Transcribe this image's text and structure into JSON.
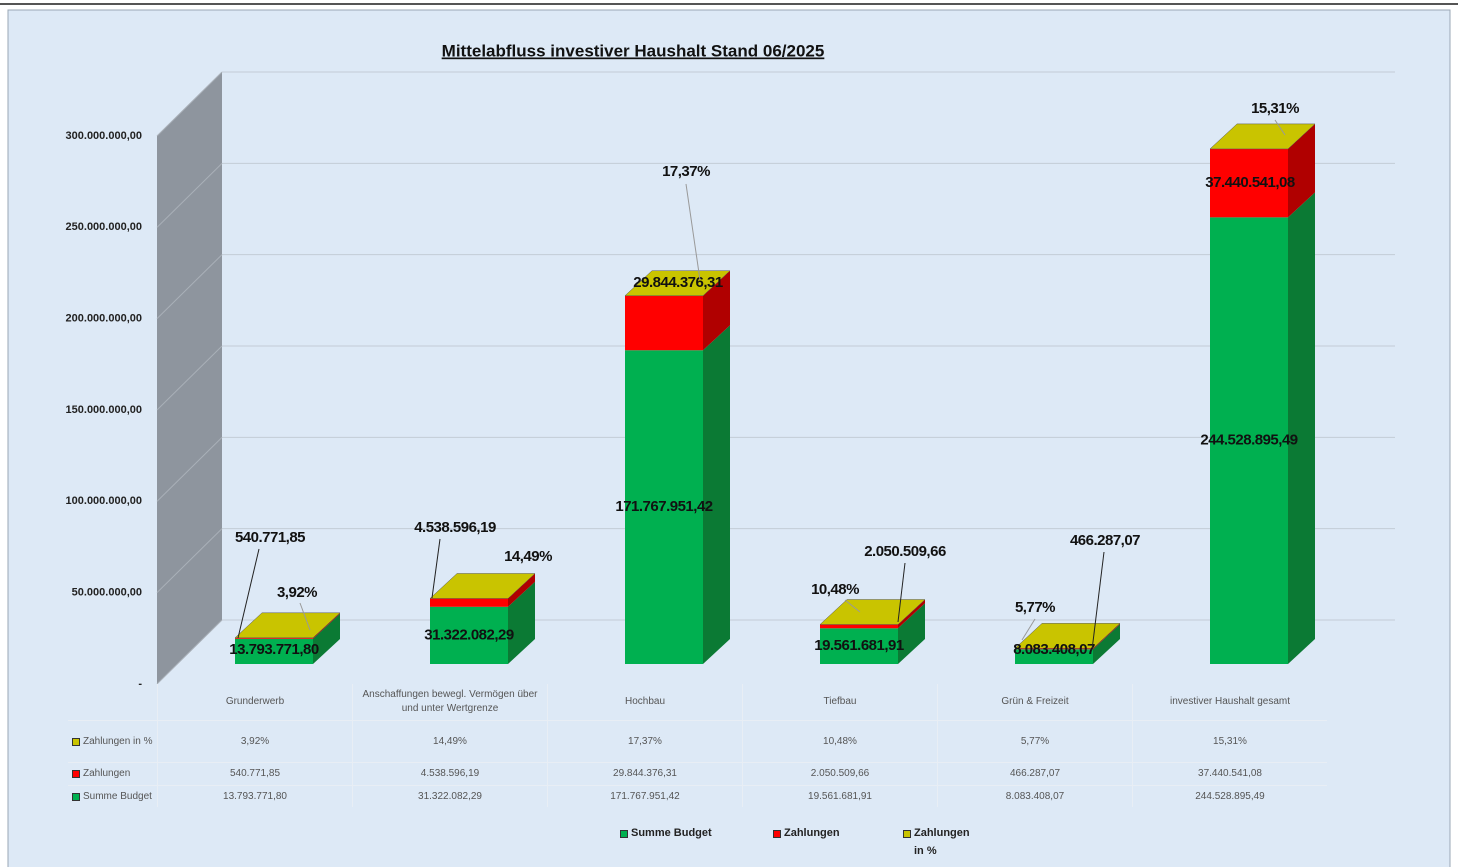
{
  "chart_data": {
    "type": "bar3d_stacked",
    "title": "Mittelabfluss investiver Haushalt Stand 06/2025",
    "categories": [
      "Grunderwerb",
      "Anschaffungen bewegl. Vermögen über und unter Wertgrenze",
      "Hochbau",
      "Tiefbau",
      "Grün & Freizeit",
      "investiver Haushalt gesamt"
    ],
    "series": [
      {
        "name": "Summe Budget",
        "color": "#00b050",
        "side": "#0b7a34",
        "values": [
          13793771.8,
          31322082.29,
          171767951.42,
          19561681.91,
          8083408.07,
          244528895.49
        ],
        "value_labels": [
          "13.793.771,80",
          "31.322.082,29",
          "171.767.951,42",
          "19.561.681,91",
          "8.083.408,07",
          "244.528.895,49"
        ]
      },
      {
        "name": "Zahlungen",
        "color": "#ff0000",
        "side": "#b00000",
        "values": [
          540771.85,
          4538596.19,
          29844376.31,
          2050509.66,
          466287.07,
          37440541.08
        ],
        "value_labels": [
          "540.771,85",
          "4.538.596,19",
          "29.844.376,31",
          "2.050.509,66",
          "466.287,07",
          "37.440.541,08"
        ]
      },
      {
        "name": "Zahlungen in %",
        "color": "#c9c400",
        "side": "#8f8b00",
        "values": [
          3.92,
          14.49,
          17.37,
          10.48,
          5.77,
          15.31
        ],
        "value_labels": [
          "3,92%",
          "14,49%",
          "17,37%",
          "10,48%",
          "5,77%",
          "15,31%"
        ]
      }
    ],
    "ylim": [
      0,
      300000000
    ],
    "yticks": [
      {
        "value": 0,
        "label": "-"
      },
      {
        "value": 50000000,
        "label": "50.000.000,00"
      },
      {
        "value": 100000000,
        "label": "100.000.000,00"
      },
      {
        "value": 150000000,
        "label": "150.000.000,00"
      },
      {
        "value": 200000000,
        "label": "200.000.000,00"
      },
      {
        "value": 250000000,
        "label": "250.000.000,00"
      },
      {
        "value": 300000000,
        "label": "300.000.000,00"
      }
    ],
    "grid": true
  }
}
